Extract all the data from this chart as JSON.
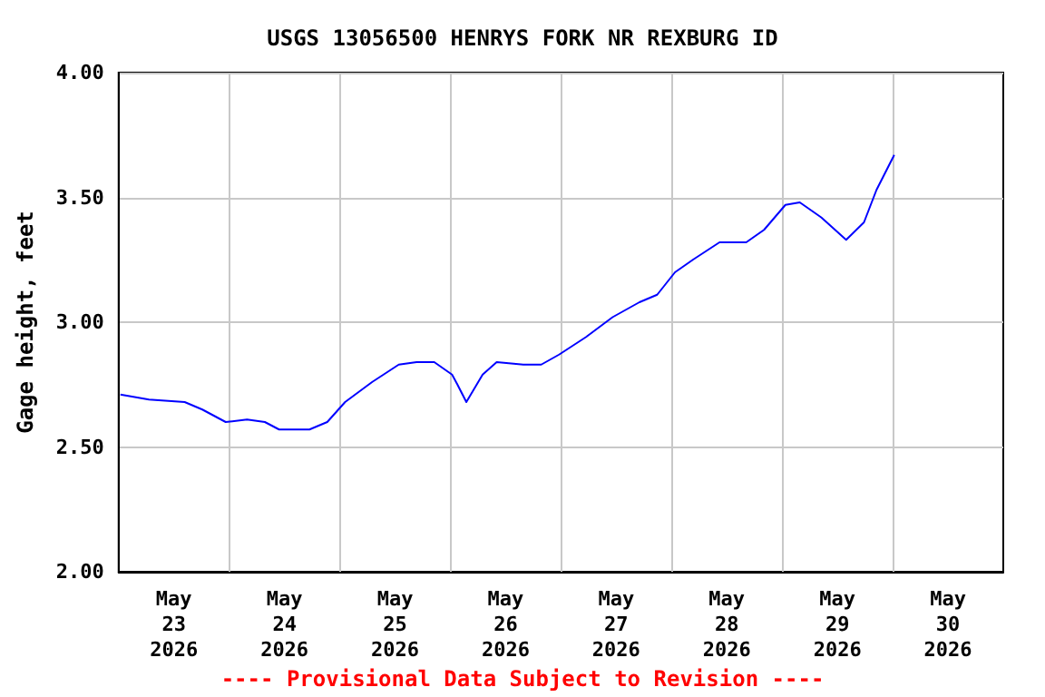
{
  "chart_data": {
    "type": "line",
    "title": "USGS 13056500 HENRYS FORK NR REXBURG ID",
    "ylabel": "Gage height, feet",
    "annotations": [
      "---- Provisional Data Subject to Revision ----"
    ],
    "x": [
      "2026-05-23T00:23",
      "2026-05-23T06:35",
      "2026-05-23T14:20",
      "2026-05-23T18:10",
      "2026-05-23T23:14",
      "2026-05-24T03:52",
      "2026-05-24T07:44",
      "2026-05-24T10:50",
      "2026-05-24T17:25",
      "2026-05-24T21:17",
      "2026-05-25T01:09",
      "2026-05-25T07:00",
      "2026-05-25T12:48",
      "2026-05-25T16:40",
      "2026-05-25T20:30",
      "2026-05-26T00:22",
      "2026-05-26T01:32",
      "2026-05-26T03:28",
      "2026-05-26T07:00",
      "2026-05-26T10:03",
      "2026-05-26T15:50",
      "2026-05-26T19:43",
      "2026-05-26T23:35",
      "2026-05-27T05:24",
      "2026-05-27T11:12",
      "2026-05-27T17:02",
      "2026-05-27T20:53",
      "2026-05-28T00:45",
      "2026-05-28T04:37",
      "2026-05-28T10:25",
      "2026-05-28T16:13",
      "2026-05-28T20:05",
      "2026-05-29T00:43",
      "2026-05-29T03:50",
      "2026-05-29T08:29",
      "2026-05-29T13:54",
      "2026-05-29T17:46",
      "2026-05-29T20:29",
      "2026-05-30T00:20"
    ],
    "series": [
      {
        "color": "#0000ff",
        "values": [
          2.71,
          2.69,
          2.68,
          2.65,
          2.6,
          2.61,
          2.6,
          2.57,
          2.57,
          2.6,
          2.68,
          2.76,
          2.83,
          2.84,
          2.84,
          2.79,
          2.75,
          2.68,
          2.79,
          2.84,
          2.83,
          2.83,
          2.87,
          2.94,
          3.02,
          3.08,
          3.11,
          3.2,
          3.25,
          3.32,
          3.32,
          3.37,
          3.47,
          3.48,
          3.42,
          3.33,
          3.4,
          3.53,
          3.67
        ]
      }
    ],
    "xlim": [
      "2026-05-23T00:00",
      "2026-05-31T00:00"
    ],
    "xticks": [
      {
        "value": "2026-05-23T12:00",
        "label": "May 23 2026"
      },
      {
        "value": "2026-05-24T12:00",
        "label": "May 24 2026"
      },
      {
        "value": "2026-05-25T12:00",
        "label": "May 25 2026"
      },
      {
        "value": "2026-05-26T12:00",
        "label": "May 26 2026"
      },
      {
        "value": "2026-05-27T12:00",
        "label": "May 27 2026"
      },
      {
        "value": "2026-05-28T12:00",
        "label": "May 28 2026"
      },
      {
        "value": "2026-05-29T12:00",
        "label": "May 29 2026"
      },
      {
        "value": "2026-05-30T12:00",
        "label": "May 30 2026"
      },
      {
        "value": "2026-05-24T00:00",
        "label": null
      },
      {
        "value": "2026-05-25T00:00",
        "label": null
      },
      {
        "value": "2026-05-26T00:00",
        "label": null
      },
      {
        "value": "2026-05-27T00:00",
        "label": null
      },
      {
        "value": "2026-05-28T00:00",
        "label": null
      },
      {
        "value": "2026-05-29T00:00",
        "label": null
      },
      {
        "value": "2026-05-30T00:00",
        "label": null
      }
    ],
    "ylim": [
      2,
      4
    ],
    "yticks": [
      {
        "value": 2,
        "label": "2.00"
      },
      {
        "value": 2.5,
        "label": "2.50"
      },
      {
        "value": 3,
        "label": "3.00"
      },
      {
        "value": 3.5,
        "label": "3.50"
      },
      {
        "value": 4,
        "label": "4.00"
      }
    ],
    "grid": true,
    "marker": "none",
    "line_style": "solid"
  }
}
